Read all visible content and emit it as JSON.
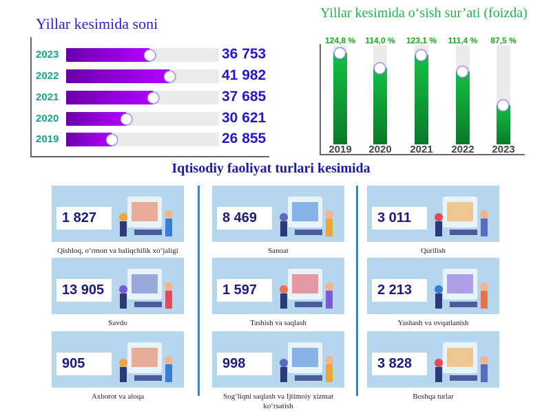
{
  "left_chart": {
    "title": "Yillar kesimida soni",
    "chart_data": {
      "type": "bar",
      "orientation": "horizontal",
      "categories": [
        "2023",
        "2022",
        "2021",
        "2020",
        "2019"
      ],
      "values": [
        36753,
        41982,
        37685,
        30621,
        26855
      ],
      "labels": [
        "36 753",
        "41 982",
        "37 685",
        "30 621",
        "26 855"
      ],
      "xlim": [
        15000,
        55000
      ]
    }
  },
  "right_chart": {
    "title": "Yillar kesimida o‘sish sur’ati (foizda)",
    "chart_data": {
      "type": "bar",
      "categories": [
        "2019",
        "2020",
        "2021",
        "2022",
        "2023"
      ],
      "values": [
        124.8,
        114.0,
        123.1,
        111.4,
        87.5
      ],
      "labels": [
        "124,8 %",
        "114,0 %",
        "123,1 %",
        "111,4 %",
        "87,5 %"
      ],
      "ylim": [
        60,
        130
      ]
    }
  },
  "section_title": "Iqtisodiy faoliyat turlari kesimida",
  "cards": [
    {
      "value": "1 827",
      "label": "Qishloq, o‘rmon va baliqchilik xo‘jaligi",
      "icon": "agriculture-illustration"
    },
    {
      "value": "8 469",
      "label": "Sanoat",
      "icon": "industry-illustration"
    },
    {
      "value": "3 011",
      "label": "Qurilish",
      "icon": "construction-illustration"
    },
    {
      "value": "13 905",
      "label": "Savdo",
      "icon": "shopping-illustration"
    },
    {
      "value": "1 597",
      "label": "Tashish va saqlash",
      "icon": "transport-illustration"
    },
    {
      "value": "2 213",
      "label": "Yashash va ovqatlanish",
      "icon": "food-service-illustration"
    },
    {
      "value": "905",
      "label": "Axborot va aloqa",
      "icon": "it-illustration"
    },
    {
      "value": "998",
      "label": "Sog‘liqni saqlash va Ijtimoiy xizmat ko‘rsatish",
      "icon": "healthcare-illustration"
    },
    {
      "value": "3 828",
      "label": "Boshqa turlar",
      "icon": "analytics-illustration"
    }
  ],
  "colors": {
    "hbar_start": "#6a00a8",
    "hbar_end": "#b300ff",
    "vbar": "#14c043",
    "card_bg": "#b6d6ee",
    "separator": "#1a8fe0"
  }
}
